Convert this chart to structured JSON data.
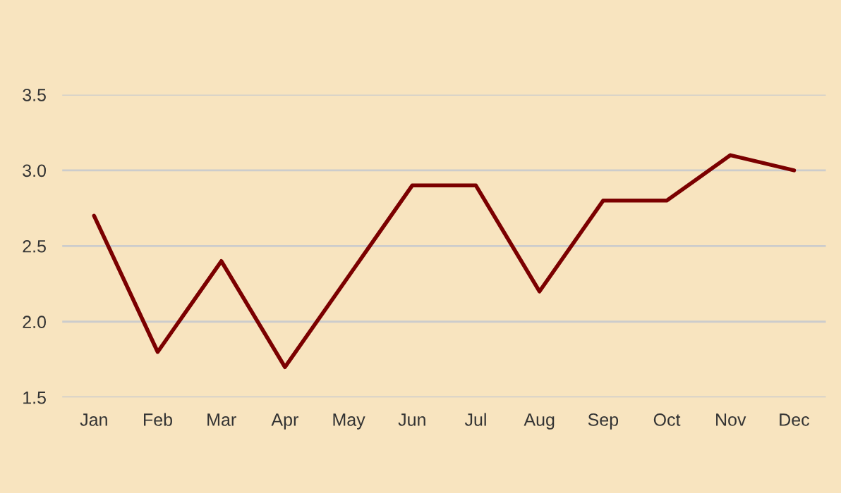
{
  "chart_data": {
    "type": "line",
    "categories": [
      "Jan",
      "Feb",
      "Mar",
      "Apr",
      "May",
      "Jun",
      "Jul",
      "Aug",
      "Sep",
      "Oct",
      "Nov",
      "Dec"
    ],
    "series": [
      {
        "color": "#7b0000",
        "values": [
          2.7,
          1.8,
          2.4,
          1.7,
          2.3,
          2.9,
          2.9,
          2.2,
          2.8,
          2.8,
          3.1,
          3.0
        ]
      }
    ],
    "ylim": [
      1.5,
      3.5
    ],
    "yticks": [
      {
        "value": 1.5,
        "label": "1.5"
      },
      {
        "value": 2.0,
        "label": "2.0"
      },
      {
        "value": 2.5,
        "label": "2.5"
      },
      {
        "value": 3.0,
        "label": "3.0"
      },
      {
        "value": 3.5,
        "label": "3.5"
      }
    ],
    "grid": "y",
    "marker": "none",
    "line_style": "solid"
  }
}
